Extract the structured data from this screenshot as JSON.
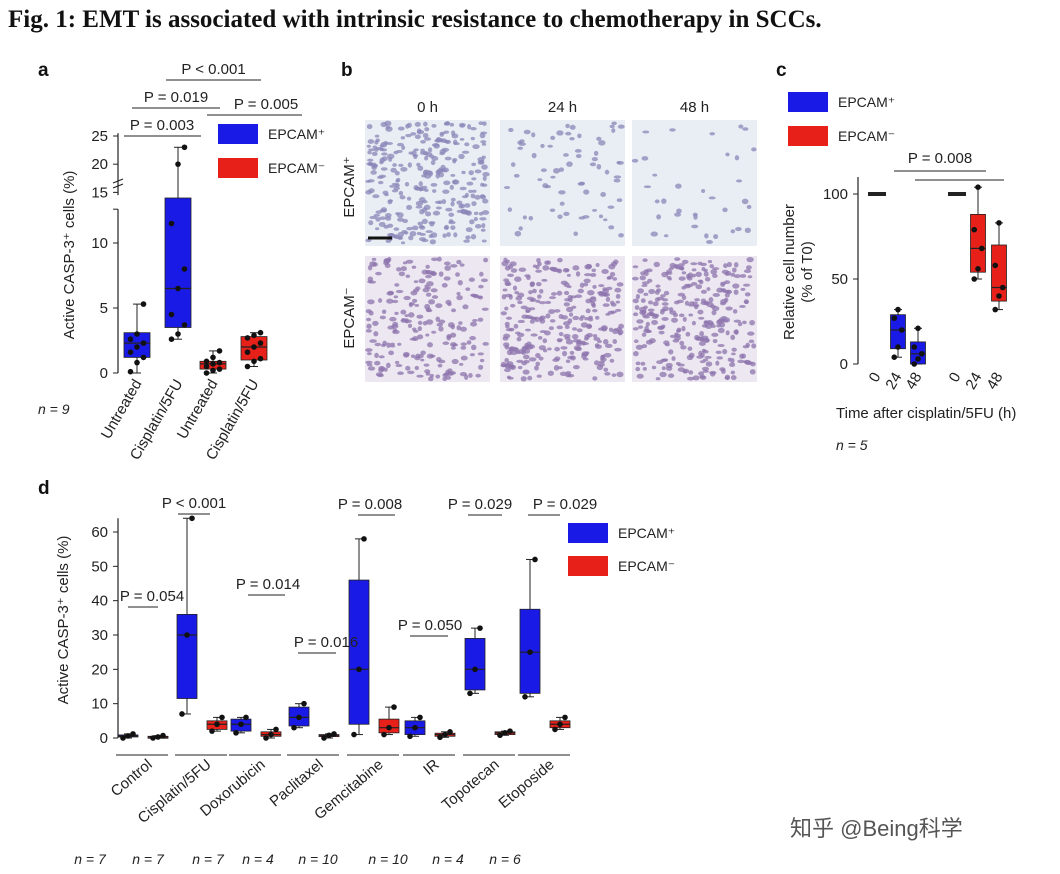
{
  "figure_title": "Fig. 1: EMT is associated with intrinsic resistance to chemotherapy in SCCs.",
  "watermark": "知乎 @Being科学",
  "colors": {
    "epcam_pos": "#1a1ae6",
    "epcam_neg": "#e8201a"
  },
  "panels": {
    "a": {
      "letter": "a",
      "n_label": "n = 9",
      "legend": [
        "EPCAM⁺",
        "EPCAM⁻"
      ],
      "pvalues": [
        "P < 0.001",
        "P = 0.019",
        "P = 0.005",
        "P = 0.003"
      ]
    },
    "b": {
      "letter": "b",
      "time_labels": [
        "0 h",
        "24 h",
        "48 h"
      ],
      "row_labels": [
        "EPCAM⁺",
        "EPCAM⁻"
      ],
      "cell_density": {
        "EPCAM⁺": [
          "dense",
          "sparse",
          "very sparse"
        ],
        "EPCAM⁻": [
          "moderate",
          "dense",
          "dense"
        ]
      }
    },
    "c": {
      "letter": "c",
      "legend": [
        "EPCAM⁺",
        "EPCAM⁻"
      ],
      "pvalue": "P = 0.008",
      "n_label": "n = 5"
    },
    "d": {
      "letter": "d",
      "legend": [
        "EPCAM⁺",
        "EPCAM⁻"
      ],
      "n_labels": [
        "n = 7",
        "n = 7",
        "n = 7",
        "n = 4",
        "n = 10",
        "n = 10",
        "n = 4",
        "n = 6"
      ]
    }
  },
  "chart_data": [
    {
      "panel": "a",
      "type": "box",
      "ylabel": "Active CASP-3⁺ cells (%)",
      "categories": [
        "Untreated",
        "Cisplatin/5FU",
        "Untreated",
        "Cisplatin/5FU"
      ],
      "y_axis_broken": true,
      "yticks_lower": [
        0,
        5,
        10
      ],
      "yticks_upper": [
        15,
        20,
        25
      ],
      "boxes": [
        {
          "series": "EPCAM⁺",
          "min": 0,
          "q1": 1.2,
          "median": 2.3,
          "q3": 3.1,
          "max": 5.3,
          "points": [
            0.1,
            0.8,
            1.2,
            1.6,
            2.0,
            2.3,
            2.6,
            3.0,
            5.3
          ]
        },
        {
          "series": "EPCAM⁺",
          "min": 2.6,
          "q1": 3.5,
          "median": 6.5,
          "q3": 14.0,
          "max": 23.0,
          "points": [
            2.6,
            3.0,
            3.7,
            4.5,
            6.5,
            8.0,
            11.5,
            20.0,
            23.0
          ]
        },
        {
          "series": "EPCAM⁻",
          "min": 0,
          "q1": 0.3,
          "median": 0.7,
          "q3": 0.9,
          "max": 1.7,
          "points": [
            0.0,
            0.2,
            0.3,
            0.5,
            0.7,
            0.8,
            0.9,
            1.2,
            1.7
          ]
        },
        {
          "series": "EPCAM⁻",
          "min": 0.5,
          "q1": 1.0,
          "median": 2.0,
          "q3": 2.8,
          "max": 3.1,
          "points": [
            0.5,
            0.9,
            1.1,
            1.6,
            2.0,
            2.3,
            2.7,
            2.9,
            3.1
          ]
        }
      ]
    },
    {
      "panel": "c",
      "type": "box",
      "ylabel": "Relative cell number (% of T0)",
      "xlabel": "Time after cisplatin/5FU (h)",
      "categories": [
        "0",
        "24",
        "48",
        "0",
        "24",
        "48"
      ],
      "yticks": [
        0,
        50,
        100
      ],
      "ylim": [
        0,
        110
      ],
      "boxes": [
        {
          "series": "EPCAM⁺",
          "min": 100,
          "q1": 100,
          "median": 100,
          "q3": 100,
          "max": 100,
          "points": []
        },
        {
          "series": "EPCAM⁺",
          "min": 4,
          "q1": 9,
          "median": 20,
          "q3": 29,
          "max": 32,
          "points": [
            4,
            10,
            20,
            27,
            32
          ]
        },
        {
          "series": "EPCAM⁺",
          "min": 0,
          "q1": 0,
          "median": 6,
          "q3": 13,
          "max": 21,
          "points": [
            0,
            3,
            6,
            10,
            21
          ]
        },
        {
          "series": "EPCAM⁻",
          "min": 100,
          "q1": 100,
          "median": 100,
          "q3": 100,
          "max": 100,
          "points": []
        },
        {
          "series": "EPCAM⁻",
          "min": 50,
          "q1": 54,
          "median": 68,
          "q3": 88,
          "max": 104,
          "points": [
            50,
            56,
            68,
            79,
            104
          ]
        },
        {
          "series": "EPCAM⁻",
          "min": 32,
          "q1": 37,
          "median": 45,
          "q3": 70,
          "max": 83,
          "points": [
            32,
            40,
            45,
            58,
            83
          ]
        }
      ]
    },
    {
      "panel": "d",
      "type": "box",
      "ylabel": "Active CASP-3⁺ cells (%)",
      "categories": [
        "Control",
        "Cisplatin/5FU",
        "Doxorubicin",
        "Paclitaxel",
        "Gemcitabine",
        "IR",
        "Topotecan",
        "Etoposide"
      ],
      "yticks": [
        0,
        10,
        20,
        30,
        40,
        50,
        60
      ],
      "ylim": [
        0,
        65
      ],
      "pvalues": [
        "P = 0.054",
        "P < 0.001",
        "P = 0.014",
        "P = 0.016",
        "P = 0.008",
        "P = 0.050",
        "P = 0.029",
        "P = 0.029"
      ],
      "groups": [
        {
          "EPCAM⁺": {
            "min": 0,
            "q1": 0.3,
            "median": 0.6,
            "q3": 0.9,
            "max": 1.2
          },
          "EPCAM⁻": {
            "min": 0,
            "q1": 0.1,
            "median": 0.3,
            "q3": 0.5,
            "max": 0.7
          }
        },
        {
          "EPCAM⁺": {
            "min": 7,
            "q1": 11.5,
            "median": 30,
            "q3": 36,
            "max": 64
          },
          "EPCAM⁻": {
            "min": 2,
            "q1": 2.5,
            "median": 4,
            "q3": 5,
            "max": 6
          }
        },
        {
          "EPCAM⁺": {
            "min": 1.5,
            "q1": 2,
            "median": 4,
            "q3": 5.5,
            "max": 6
          },
          "EPCAM⁻": {
            "min": 0,
            "q1": 0.5,
            "median": 1,
            "q3": 1.8,
            "max": 2.5
          }
        },
        {
          "EPCAM⁺": {
            "min": 3,
            "q1": 3.5,
            "median": 6,
            "q3": 9,
            "max": 10
          },
          "EPCAM⁻": {
            "min": 0,
            "q1": 0.4,
            "median": 0.8,
            "q3": 1.0,
            "max": 1.2
          }
        },
        {
          "EPCAM⁺": {
            "min": 1,
            "q1": 4,
            "median": 20,
            "q3": 46,
            "max": 58
          },
          "EPCAM⁻": {
            "min": 1,
            "q1": 1.5,
            "median": 3,
            "q3": 5.5,
            "max": 9
          }
        },
        {
          "EPCAM⁺": {
            "min": 0.5,
            "q1": 1,
            "median": 3,
            "q3": 5,
            "max": 6
          },
          "EPCAM⁻": {
            "min": 0.2,
            "q1": 0.5,
            "median": 1,
            "q3": 1.4,
            "max": 1.8
          }
        },
        {
          "EPCAM⁺": {
            "min": 13,
            "q1": 14,
            "median": 20,
            "q3": 29,
            "max": 32
          },
          "EPCAM⁻": {
            "min": 0.8,
            "q1": 1,
            "median": 1.5,
            "q3": 1.8,
            "max": 2
          }
        },
        {
          "EPCAM⁺": {
            "min": 12,
            "q1": 13,
            "median": 25,
            "q3": 37.5,
            "max": 52
          },
          "EPCAM⁻": {
            "min": 2.5,
            "q1": 3,
            "median": 4,
            "q3": 5,
            "max": 6
          }
        }
      ]
    }
  ]
}
